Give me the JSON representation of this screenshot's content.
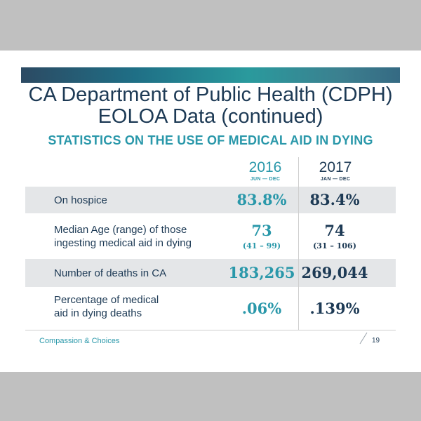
{
  "slide": {
    "title_line1": "CA Department of Public Health (CDPH)",
    "title_line2": "EOLOA Data (continued)",
    "subtitle": "STATISTICS ON THE USE OF MEDICAL AID IN DYING",
    "columns": [
      {
        "year": "2016",
        "range": "JUN — DEC",
        "color": "#2a98aa"
      },
      {
        "year": "2017",
        "range": "JAN — DEC",
        "color": "#1d3a55"
      }
    ],
    "rows": [
      {
        "label_line1": "On hospice",
        "label_line2": "",
        "v2016": "83.8%",
        "v2017": "83.4%",
        "s2016": "",
        "s2017": ""
      },
      {
        "label_line1": "Median Age (range) of those",
        "label_line2": "ingesting medical aid in dying",
        "v2016": "73",
        "v2017": "74",
        "s2016": "(41 – 99)",
        "s2017": "(31 – 106)"
      },
      {
        "label_line1": "Number of deaths in CA",
        "label_line2": "",
        "v2016": "183,265",
        "v2017": "269,044",
        "s2016": "",
        "s2017": ""
      },
      {
        "label_line1": "Percentage of medical",
        "label_line2": "aid in dying deaths",
        "v2016": ".06%",
        "v2017": ".139%",
        "s2016": "",
        "s2017": ""
      }
    ],
    "footer_left": "Compassion & Choices",
    "page_number": "19",
    "colors": {
      "teal": "#2a98aa",
      "navy": "#1d3a55",
      "row_shade": "#e4e6e8",
      "backdrop": "#c0c0c0"
    }
  }
}
